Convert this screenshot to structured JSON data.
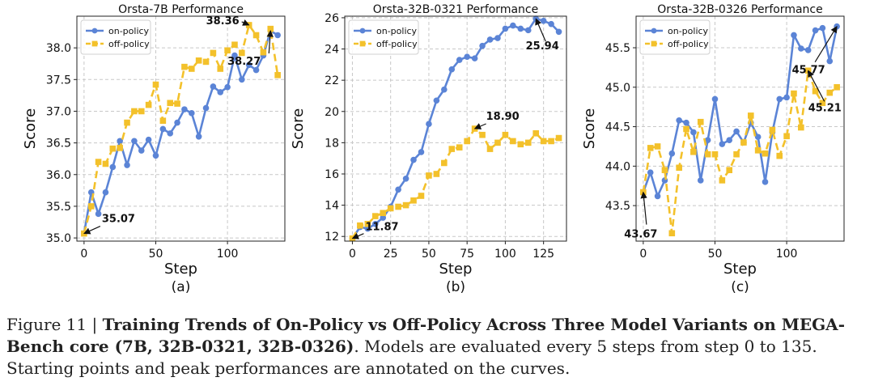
{
  "chart_data": [
    {
      "type": "line",
      "title": "Orsta-7B Performance",
      "xlabel": "Step",
      "ylabel": "Score",
      "sublabel": "(a)",
      "xlim": [
        -5,
        140
      ],
      "ylim": [
        34.95,
        38.5
      ],
      "xticks": [
        0,
        50,
        100
      ],
      "yticks": [
        35.0,
        35.5,
        36.0,
        36.5,
        37.0,
        37.5,
        38.0
      ],
      "ytick_labels": [
        "35.0",
        "35.5",
        "36.0",
        "36.5",
        "37.0",
        "37.5",
        "38.0"
      ],
      "grid": true,
      "legend": "top-left",
      "x": [
        0,
        5,
        10,
        15,
        20,
        25,
        30,
        35,
        40,
        45,
        50,
        55,
        60,
        65,
        70,
        75,
        80,
        85,
        90,
        95,
        100,
        105,
        110,
        115,
        120,
        125,
        130,
        135
      ],
      "series": [
        {
          "name": "on-policy",
          "color": "#5b84d6",
          "style": "solid",
          "marker": "circle",
          "values": [
            35.07,
            35.72,
            35.38,
            35.72,
            36.12,
            36.53,
            36.15,
            36.53,
            36.38,
            36.55,
            36.3,
            36.72,
            36.65,
            36.82,
            37.03,
            36.97,
            36.6,
            37.05,
            37.39,
            37.3,
            37.38,
            37.88,
            37.5,
            37.73,
            37.65,
            37.88,
            38.27,
            38.2
          ]
        },
        {
          "name": "off-policy",
          "color": "#f3c12b",
          "style": "dashed",
          "marker": "square",
          "values": [
            35.07,
            35.5,
            36.2,
            36.17,
            36.41,
            36.42,
            36.82,
            37.0,
            37.0,
            37.1,
            37.42,
            36.85,
            37.13,
            37.12,
            37.7,
            37.67,
            37.8,
            37.78,
            37.92,
            37.67,
            37.96,
            38.05,
            37.92,
            38.36,
            38.2,
            37.93,
            38.3,
            37.57
          ]
        }
      ],
      "annotations": [
        {
          "text": "35.07",
          "x": 0,
          "y": 35.07
        },
        {
          "text": "38.36",
          "x": 115,
          "y": 38.36
        },
        {
          "text": "38.27",
          "x": 130,
          "y": 38.27
        }
      ]
    },
    {
      "type": "line",
      "title": "Orsta-32B-0321 Performance",
      "xlabel": "Step",
      "ylabel": "Score",
      "sublabel": "(b)",
      "xlim": [
        -5,
        140
      ],
      "ylim": [
        11.7,
        26.1
      ],
      "xticks": [
        0,
        25,
        50,
        75,
        100,
        125
      ],
      "yticks": [
        12,
        14,
        16,
        18,
        20,
        22,
        24,
        26
      ],
      "ytick_labels": [
        "12",
        "14",
        "16",
        "18",
        "20",
        "22",
        "24",
        "26"
      ],
      "grid": true,
      "legend": "top-left",
      "x": [
        0,
        5,
        10,
        15,
        20,
        25,
        30,
        35,
        40,
        45,
        50,
        55,
        60,
        65,
        70,
        75,
        80,
        85,
        90,
        95,
        100,
        105,
        110,
        115,
        120,
        125,
        130,
        135
      ],
      "series": [
        {
          "name": "on-policy",
          "color": "#5b84d6",
          "style": "solid",
          "marker": "circle",
          "values": [
            11.87,
            12.6,
            12.5,
            12.8,
            13.2,
            13.9,
            15.0,
            15.7,
            16.9,
            17.4,
            19.2,
            20.7,
            21.4,
            22.7,
            23.3,
            23.5,
            23.4,
            24.2,
            24.6,
            24.7,
            25.3,
            25.5,
            25.3,
            25.2,
            25.94,
            25.8,
            25.6,
            25.1
          ]
        },
        {
          "name": "off-policy",
          "color": "#f3c12b",
          "style": "dashed",
          "marker": "square",
          "values": [
            11.87,
            12.7,
            12.8,
            13.3,
            13.5,
            13.8,
            13.9,
            14.0,
            14.3,
            14.6,
            15.9,
            16.0,
            16.7,
            17.6,
            17.7,
            18.1,
            18.9,
            18.5,
            17.6,
            18.0,
            18.5,
            18.1,
            17.9,
            18.0,
            18.6,
            18.1,
            18.1,
            18.3
          ]
        }
      ],
      "annotations": [
        {
          "text": "11.87",
          "x": 0,
          "y": 11.87
        },
        {
          "text": "18.90",
          "x": 80,
          "y": 18.9
        },
        {
          "text": "25.94",
          "x": 120,
          "y": 25.94
        }
      ]
    },
    {
      "type": "line",
      "title": "Orsta-32B-0326 Performance",
      "xlabel": "Step",
      "ylabel": "Score",
      "sublabel": "(c)",
      "xlim": [
        -5,
        140
      ],
      "ylim": [
        43.05,
        45.9
      ],
      "xticks": [
        0,
        50,
        100
      ],
      "yticks": [
        43.5,
        44.0,
        44.5,
        45.0,
        45.5
      ],
      "ytick_labels": [
        "43.5",
        "44.0",
        "44.5",
        "45.0",
        "45.5"
      ],
      "grid": true,
      "legend": "top-left",
      "x": [
        0,
        5,
        10,
        15,
        20,
        25,
        30,
        35,
        40,
        45,
        50,
        55,
        60,
        65,
        70,
        75,
        80,
        85,
        90,
        95,
        100,
        105,
        110,
        115,
        120,
        125,
        130,
        135
      ],
      "series": [
        {
          "name": "on-policy",
          "color": "#5b84d6",
          "style": "solid",
          "marker": "circle",
          "values": [
            43.67,
            43.92,
            43.62,
            43.82,
            44.16,
            44.58,
            44.55,
            44.43,
            43.82,
            44.33,
            44.85,
            44.28,
            44.33,
            44.44,
            44.3,
            44.55,
            44.37,
            43.8,
            44.43,
            44.85,
            44.87,
            45.66,
            45.49,
            45.47,
            45.72,
            45.75,
            45.33,
            45.77
          ]
        },
        {
          "name": "off-policy",
          "color": "#f3c12b",
          "style": "dashed",
          "marker": "square",
          "values": [
            43.67,
            44.23,
            44.25,
            43.95,
            43.15,
            43.98,
            44.47,
            44.18,
            44.56,
            44.15,
            44.15,
            43.82,
            43.95,
            44.15,
            44.3,
            44.64,
            44.2,
            44.16,
            44.46,
            44.13,
            44.38,
            44.92,
            44.49,
            45.21,
            44.95,
            44.8,
            44.93,
            45.0
          ]
        }
      ],
      "annotations": [
        {
          "text": "43.67",
          "x": 0,
          "y": 43.67
        },
        {
          "text": "45.77",
          "x": 135,
          "y": 45.77
        },
        {
          "text": "45.21",
          "x": 115,
          "y": 45.21
        }
      ]
    }
  ],
  "caption": {
    "label": "Figure 11 | ",
    "title": "Training Trends of On-Policy vs Off-Policy Across Three Model Variants on MEGA-Bench core (7B, 32B-0321, 32B-0326)",
    "text": ". Models are evaluated every 5 steps from step 0 to 135. Starting points and peak performances are annotated on the curves."
  }
}
